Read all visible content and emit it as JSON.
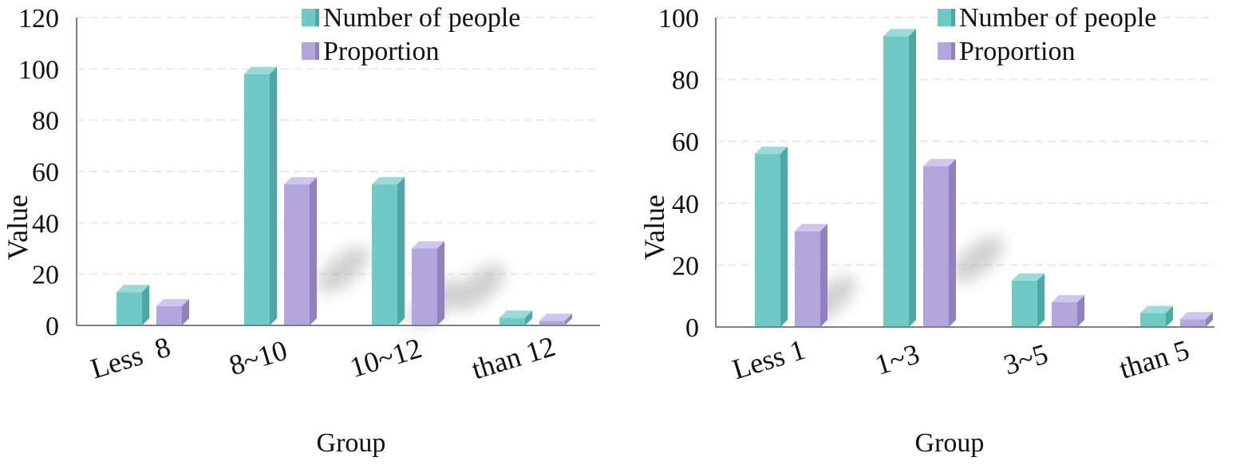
{
  "colors": {
    "people": "#6fcac6",
    "people_side": "#4fa7a3",
    "people_top": "#97dcd8",
    "proportion": "#b2a6dc",
    "proportion_side": "#8f83bf",
    "proportion_top": "#cfc6ee",
    "axis": "#808080",
    "grid": "#e9e9e9"
  },
  "chart_data": [
    {
      "type": "bar",
      "xlabel": "Group",
      "ylabel": "Value",
      "ylim": [
        0,
        120
      ],
      "yticks": [
        0,
        20,
        40,
        60,
        80,
        100,
        120
      ],
      "ytick_labels": [
        "0",
        "20",
        "40",
        "60",
        "80",
        "100",
        "120"
      ],
      "categories": [
        "Less  8",
        "8~10",
        "10~12",
        "than 12"
      ],
      "series": [
        {
          "name": "Number of people",
          "values": [
            13,
            98,
            55,
            3
          ]
        },
        {
          "name": "Proportion",
          "values": [
            7.5,
            55,
            30,
            1.8
          ]
        }
      ],
      "legend": "top-right",
      "grid": true
    },
    {
      "type": "bar",
      "xlabel": "Group",
      "ylabel": "Value",
      "ylim": [
        0,
        100
      ],
      "yticks": [
        0,
        20,
        40,
        60,
        80,
        100
      ],
      "ytick_labels": [
        "0",
        "20",
        "40",
        "60",
        "80",
        "100"
      ],
      "categories": [
        "Less 1",
        "1~3",
        "3~5",
        "than 5"
      ],
      "series": [
        {
          "name": "Number of people",
          "values": [
            56,
            94,
            15,
            4.5
          ]
        },
        {
          "name": "Proportion",
          "values": [
            31,
            52,
            8,
            2.5
          ]
        }
      ],
      "legend": "top-right",
      "grid": true
    }
  ]
}
